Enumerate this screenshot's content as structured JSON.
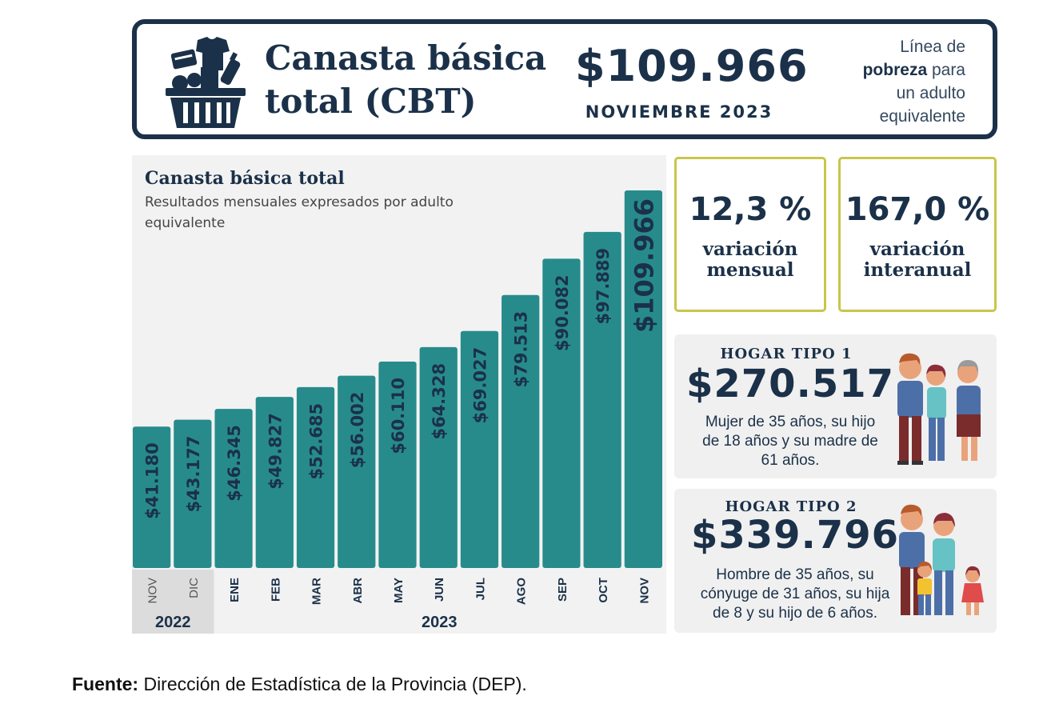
{
  "header": {
    "title_line1": "Canasta básica",
    "title_line2": "total (CBT)",
    "amount": "$109.966",
    "period": "NOVIEMBRE 2023",
    "desc_line1": "Línea de",
    "desc_bold": "pobreza",
    "desc_line2_rest": " para",
    "desc_line3": "un adulto",
    "desc_line4": "equivalente",
    "icon": "shopping-basket-icon"
  },
  "stats": {
    "mensual": {
      "value": "12,3 %",
      "label_line1": "variación",
      "label_line2": "mensual"
    },
    "interanual": {
      "value": "167,0 %",
      "label_line1": "variación",
      "label_line2": "interanual"
    }
  },
  "hogar1": {
    "title": "HOGAR TIPO 1",
    "amount": "$270.517",
    "desc_line1": "Mujer de 35 años, su hijo",
    "desc_line2": "de 18 años y su madre de",
    "desc_line3": "61 años.",
    "icon": "family-three-adults-icon"
  },
  "hogar2": {
    "title": "HOGAR TIPO 2",
    "amount": "$339.796",
    "desc_line1": "Hombre de 35 años, su",
    "desc_line2": "cónyuge de 31 años, su hija",
    "desc_line3": "de 8 y su hijo de 6 años.",
    "icon": "family-two-adults-two-children-icon"
  },
  "source": {
    "label": "Fuente:",
    "text": " Dirección de Estadística de la Provincia (DEP)."
  },
  "colors": {
    "navy": "#1b3149",
    "bar": "#278b8c",
    "stat_border": "#c9c54a",
    "panel_bg": "#f2f2f2"
  },
  "chart_data": {
    "type": "bar",
    "title": "Canasta básica total",
    "subtitle": "Resultados mensuales expresados por adulto equivalente",
    "categories": [
      "NOV",
      "DIC",
      "ENE",
      "FEB",
      "MAR",
      "ABR",
      "MAY",
      "JUN",
      "JUL",
      "AGO",
      "SEP",
      "OCT",
      "NOV"
    ],
    "years": [
      {
        "label": "2022",
        "from": 0,
        "to": 1
      },
      {
        "label": "2023",
        "from": 2,
        "to": 12
      }
    ],
    "values": [
      41180,
      43177,
      46345,
      49827,
      52685,
      56002,
      60110,
      64328,
      69027,
      79513,
      90082,
      97889,
      109966
    ],
    "labels": [
      "$41.180",
      "$43.177",
      "$46.345",
      "$49.827",
      "$52.685",
      "$56.002",
      "$60.110",
      "$64.328",
      "$69.027",
      "$79.513",
      "$90.082",
      "$97.889",
      "$109.966"
    ],
    "highlight_last": true,
    "grid": false
  }
}
